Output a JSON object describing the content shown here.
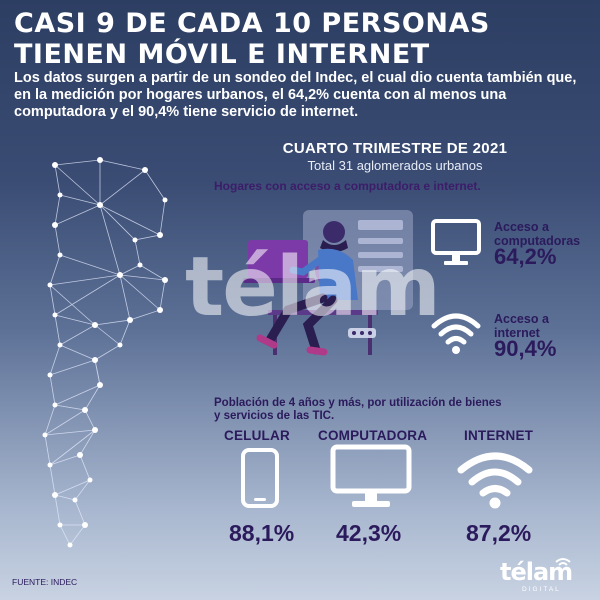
{
  "headline": {
    "line1": "CASI 9 DE CADA 10 PERSONAS",
    "line2": "TIENEN MÓVIL E INTERNET"
  },
  "lead": "Los datos surgen a partir de un sondeo del Indec, el cual dio cuenta también que, en la medición por hogares urbanos, el 64,2% cuenta con al menos una computadora y el 90,4% tiene servicio de internet.",
  "period": {
    "title": "CUARTO TRIMESTRE DE 2021",
    "subtitle": "Total 31 aglomerados urbanos"
  },
  "households": {
    "heading": "Hogares con acceso a computadora e internet.",
    "items": [
      {
        "label_line1": "Acceso a",
        "label_line2": "computadoras",
        "value": "64,2%",
        "icon": "monitor-icon"
      },
      {
        "label_line1": "Acceso a",
        "label_line2": "internet",
        "value": "90,4%",
        "icon": "wifi-icon"
      }
    ]
  },
  "population": {
    "heading_line1": "Población de 4 años y más, por utilización de bienes",
    "heading_line2": "y servicios de las TIC.",
    "items": [
      {
        "label": "CELULAR",
        "value": "88,1%",
        "icon": "mobile-phone-icon"
      },
      {
        "label": "COMPUTADORA",
        "value": "42,3%",
        "icon": "monitor-icon"
      },
      {
        "label": "INTERNET",
        "value": "87,2%",
        "icon": "wifi-icon"
      }
    ]
  },
  "watermark": "télam",
  "source": "FUENTE: INDEC",
  "logo": {
    "name": "télam",
    "sub": "DIGITAL"
  },
  "colors": {
    "background_top": "#2d3e63",
    "background_bottom": "#c8d2e2",
    "text_dark": "#2b1a5c",
    "accent_purple": "#7c3aa8",
    "map_line": "#e6ecff"
  }
}
